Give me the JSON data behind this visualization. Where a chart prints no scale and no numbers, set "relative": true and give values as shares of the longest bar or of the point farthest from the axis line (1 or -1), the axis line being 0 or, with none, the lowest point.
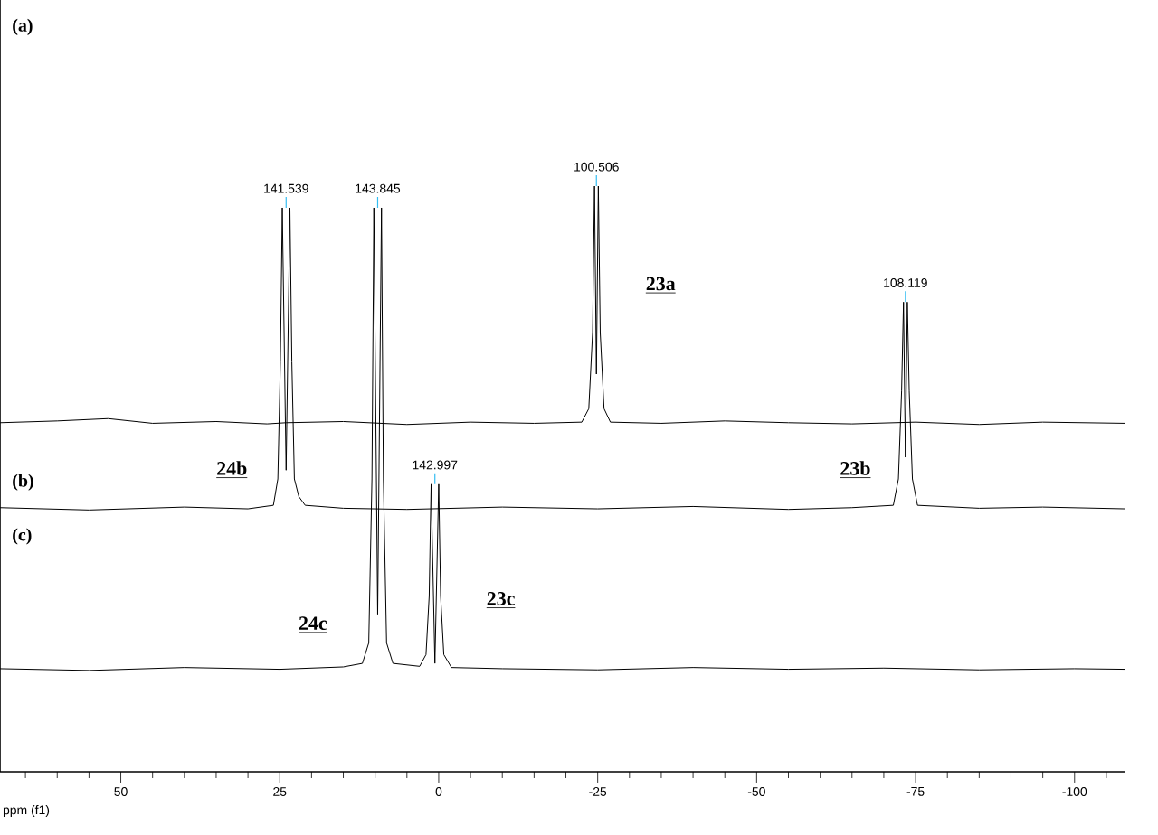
{
  "chart_data": {
    "type": "line",
    "relative": true,
    "xlabel": "ppm (f1)",
    "xlim": [
      69,
      -108
    ],
    "xticks": [
      {
        "value": 65,
        "label": null
      },
      {
        "value": 60,
        "label": null
      },
      {
        "value": 55,
        "label": null
      },
      50,
      {
        "value": 45,
        "label": null
      },
      {
        "value": 40,
        "label": null
      },
      {
        "value": 35,
        "label": null
      },
      {
        "value": 30,
        "label": null
      },
      25,
      {
        "value": 20,
        "label": null
      },
      {
        "value": 15,
        "label": null
      },
      {
        "value": 10,
        "label": null
      },
      {
        "value": 5,
        "label": null
      },
      0,
      {
        "value": -5,
        "label": null
      },
      {
        "value": -10,
        "label": null
      },
      {
        "value": -15,
        "label": null
      },
      {
        "value": -20,
        "label": null
      },
      -25,
      {
        "value": -30,
        "label": null
      },
      {
        "value": -35,
        "label": null
      },
      {
        "value": -40,
        "label": null
      },
      {
        "value": -45,
        "label": null
      },
      -50,
      {
        "value": -55,
        "label": null
      },
      {
        "value": -60,
        "label": null
      },
      {
        "value": -65,
        "label": null
      },
      {
        "value": -70,
        "label": null
      },
      -75,
      {
        "value": -80,
        "label": null
      },
      {
        "value": -85,
        "label": null
      },
      {
        "value": -90,
        "label": null
      },
      {
        "value": -95,
        "label": null
      },
      -100,
      {
        "value": -105,
        "label": null
      }
    ],
    "series": [
      {
        "color": "#000000",
        "x": [
          69,
          60,
          52,
          45,
          35,
          27,
          24,
          15,
          5,
          -5,
          -15,
          -22.5,
          -23.6,
          -24.2,
          -24.5,
          -24.8,
          -25.1,
          -25.4,
          -26,
          -27,
          -35,
          -45,
          -55,
          -65,
          -75,
          -85,
          -95,
          -108
        ],
        "values": [
          0.596,
          0.599,
          0.603,
          0.595,
          0.598,
          0.594,
          0.596,
          0.598,
          0.593,
          0.597,
          0.595,
          0.597,
          0.62,
          0.75,
          1.0,
          0.679,
          1.0,
          0.75,
          0.62,
          0.597,
          0.595,
          0.599,
          0.596,
          0.594,
          0.597,
          0.593,
          0.597,
          0.595
        ]
      },
      {
        "color": "#000000",
        "x": [
          69,
          55,
          40,
          30,
          26,
          25.3,
          24.9,
          24.6,
          24.0,
          23.4,
          23.1,
          22.7,
          22,
          21,
          15,
          5,
          -10,
          -25,
          -40,
          -55,
          -65,
          -71.5,
          -72.3,
          -72.8,
          -73.1,
          -73.4,
          -73.7,
          -74.0,
          -74.5,
          -75.3,
          -85,
          -95,
          -108
        ],
        "values": [
          0.451,
          0.447,
          0.452,
          0.449,
          0.455,
          0.5,
          0.7,
          0.963,
          0.515,
          0.963,
          0.7,
          0.5,
          0.47,
          0.455,
          0.45,
          0.448,
          0.452,
          0.449,
          0.453,
          0.448,
          0.451,
          0.455,
          0.5,
          0.65,
          0.802,
          0.537,
          0.802,
          0.65,
          0.5,
          0.455,
          0.45,
          0.452,
          0.449
        ]
      },
      {
        "color": "#000000",
        "x": [
          69,
          55,
          40,
          25,
          15,
          12,
          11,
          10.5,
          10.2,
          9.6,
          9.0,
          8.7,
          8.2,
          7.2,
          3,
          2.0,
          1.5,
          1.2,
          0.6,
          0.0,
          -0.3,
          -0.8,
          -2,
          -10,
          -25,
          -40,
          -55,
          -70,
          -85,
          -100,
          -108
        ],
        "values": [
          0.176,
          0.173,
          0.178,
          0.175,
          0.179,
          0.185,
          0.22,
          0.5,
          0.963,
          0.269,
          0.963,
          0.5,
          0.22,
          0.185,
          0.18,
          0.2,
          0.3,
          0.491,
          0.185,
          0.491,
          0.3,
          0.2,
          0.178,
          0.176,
          0.174,
          0.178,
          0.175,
          0.177,
          0.174,
          0.176,
          0.175
        ]
      }
    ],
    "annotations": [
      {
        "text": "141.539",
        "x": 24.0,
        "y": 0.963
      },
      {
        "text": "143.845",
        "x": 9.6,
        "y": 0.963
      },
      {
        "text": "100.506",
        "x": -24.8,
        "y": 1.0
      },
      {
        "text": "108.119",
        "x": -73.4,
        "y": 0.802
      },
      {
        "text": "142.997",
        "x": 0.6,
        "y": 0.491
      },
      "23a",
      "24b",
      "23b",
      "24c",
      "23c",
      "(a)",
      "(b)",
      "(c)"
    ]
  }
}
